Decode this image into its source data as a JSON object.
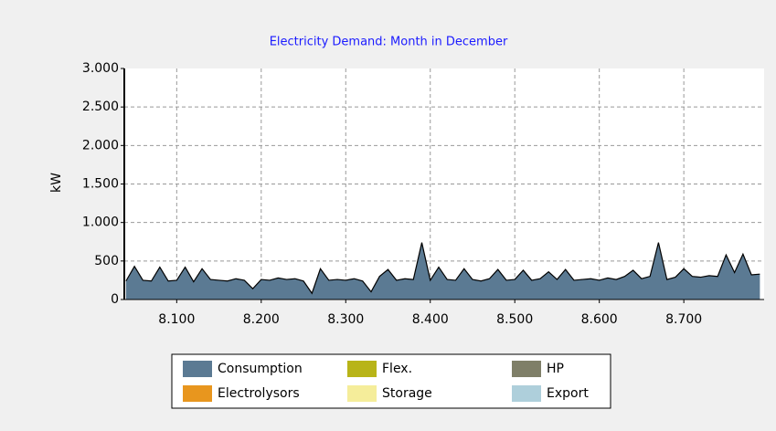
{
  "chart_data": {
    "type": "area",
    "title": "Electricity Demand: Month in December",
    "y_label": "kW",
    "x": [
      8040,
      8050,
      8060,
      8070,
      8080,
      8090,
      8100,
      8110,
      8120,
      8130,
      8140,
      8150,
      8160,
      8170,
      8180,
      8190,
      8200,
      8210,
      8220,
      8230,
      8240,
      8250,
      8260,
      8270,
      8280,
      8290,
      8300,
      8310,
      8320,
      8330,
      8340,
      8350,
      8360,
      8370,
      8380,
      8390,
      8400,
      8410,
      8420,
      8430,
      8440,
      8450,
      8460,
      8470,
      8480,
      8490,
      8500,
      8510,
      8520,
      8530,
      8540,
      8550,
      8560,
      8570,
      8580,
      8590,
      8600,
      8610,
      8620,
      8630,
      8640,
      8650,
      8660,
      8670,
      8680,
      8690,
      8700,
      8710,
      8720,
      8730,
      8740,
      8750,
      8760,
      8770,
      8780,
      8790
    ],
    "series": [
      {
        "name": "Consumption",
        "color": "#5b7a93",
        "values": [
          240,
          430,
          250,
          240,
          420,
          240,
          250,
          420,
          230,
          400,
          260,
          250,
          240,
          270,
          250,
          140,
          260,
          250,
          280,
          260,
          270,
          240,
          80,
          400,
          250,
          260,
          250,
          270,
          240,
          100,
          300,
          390,
          250,
          270,
          260,
          740,
          250,
          420,
          260,
          250,
          400,
          260,
          240,
          270,
          390,
          250,
          260,
          380,
          250,
          270,
          360,
          260,
          390,
          250,
          260,
          270,
          250,
          280,
          260,
          300,
          380,
          270,
          300,
          740,
          260,
          290,
          400,
          300,
          290,
          310,
          300,
          580,
          350,
          590,
          320,
          330
        ]
      },
      {
        "name": "Electrolysors",
        "color": "#e8961e"
      },
      {
        "name": "Flex.",
        "color": "#b8b418"
      },
      {
        "name": "Storage",
        "color": "#f5ed9a"
      },
      {
        "name": "HP",
        "color": "#7f7f68"
      },
      {
        "name": "Export",
        "color": "#aecfdb"
      }
    ],
    "xlim": [
      8038,
      8795
    ],
    "xticks": [
      {
        "value": 8100,
        "label": "8.100"
      },
      {
        "value": 8200,
        "label": "8.200"
      },
      {
        "value": 8300,
        "label": "8.300"
      },
      {
        "value": 8400,
        "label": "8.400"
      },
      {
        "value": 8500,
        "label": "8.500"
      },
      {
        "value": 8600,
        "label": "8.600"
      },
      {
        "value": 8700,
        "label": "8.700"
      }
    ],
    "ylim": [
      0,
      3000
    ],
    "yticks": [
      0,
      500,
      {
        "value": 1000,
        "label": "1.000"
      },
      {
        "value": 1500,
        "label": "1.500"
      },
      {
        "value": 2000,
        "label": "2.000"
      },
      {
        "value": 2500,
        "label": "2.500"
      },
      {
        "value": 3000,
        "label": "3.000"
      }
    ],
    "grid": true
  }
}
